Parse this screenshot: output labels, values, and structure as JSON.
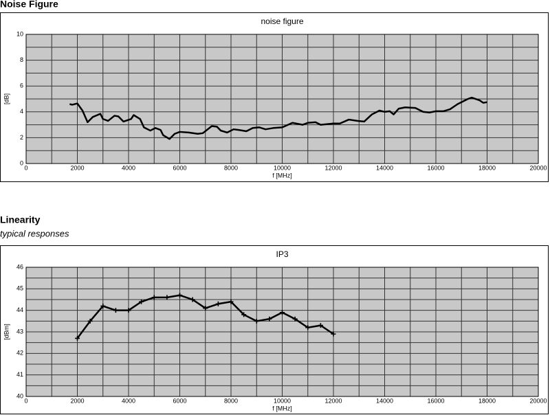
{
  "sections": [
    {
      "title": "Noise Figure"
    },
    {
      "title": "Linearity",
      "subtitle": "typical responses"
    }
  ],
  "chart_data": [
    {
      "type": "line",
      "title": "noise figure",
      "xlabel": "f [MHz]",
      "ylabel": "[dB]",
      "xlim": [
        0,
        20000
      ],
      "xticks": [
        0,
        2000,
        4000,
        6000,
        8000,
        10000,
        12000,
        14000,
        16000,
        18000,
        20000
      ],
      "xminor": [
        1000,
        3000,
        5000,
        7000,
        9000,
        11000,
        13000,
        15000,
        17000,
        19000
      ],
      "ylim": [
        0,
        10
      ],
      "yticks": [
        0,
        2,
        4,
        6,
        8,
        10
      ],
      "yminor": [
        1,
        3,
        5,
        7,
        9
      ],
      "grid": true,
      "markers": false,
      "color": "#000000",
      "x": [
        1700,
        1800,
        2000,
        2200,
        2400,
        2600,
        2900,
        3000,
        3200,
        3450,
        3600,
        3800,
        4100,
        4200,
        4450,
        4600,
        4850,
        5050,
        5250,
        5350,
        5600,
        5800,
        6000,
        6350,
        6700,
        6900,
        7250,
        7450,
        7600,
        7850,
        8100,
        8300,
        8600,
        8850,
        9100,
        9350,
        9650,
        10000,
        10400,
        10800,
        11000,
        11300,
        11500,
        12000,
        12250,
        12600,
        12950,
        13200,
        13500,
        13800,
        14000,
        14200,
        14350,
        14550,
        14800,
        15200,
        15500,
        15750,
        16000,
        16300,
        16550,
        16850,
        17250,
        17400,
        17700,
        17850,
        18000
      ],
      "values": [
        4.6,
        4.55,
        4.65,
        4.1,
        3.2,
        3.6,
        3.85,
        3.45,
        3.3,
        3.7,
        3.65,
        3.25,
        3.45,
        3.75,
        3.45,
        2.8,
        2.55,
        2.75,
        2.6,
        2.2,
        1.9,
        2.3,
        2.45,
        2.4,
        2.3,
        2.35,
        2.9,
        2.85,
        2.55,
        2.4,
        2.65,
        2.6,
        2.5,
        2.75,
        2.8,
        2.65,
        2.75,
        2.8,
        3.15,
        3.0,
        3.15,
        3.2,
        3.0,
        3.1,
        3.1,
        3.4,
        3.3,
        3.25,
        3.8,
        4.1,
        4.0,
        4.05,
        3.8,
        4.25,
        4.35,
        4.3,
        4.0,
        3.95,
        4.05,
        4.05,
        4.2,
        4.6,
        5.0,
        5.1,
        4.9,
        4.7,
        4.75
      ]
    },
    {
      "type": "line",
      "title": "IP3",
      "xlabel": "f [MHz]",
      "ylabel": "[dBm]",
      "xlim": [
        0,
        20000
      ],
      "xticks": [
        0,
        2000,
        4000,
        6000,
        8000,
        10000,
        12000,
        14000,
        16000,
        18000,
        20000
      ],
      "xminor": [
        1000,
        3000,
        5000,
        7000,
        9000,
        11000,
        13000,
        15000,
        17000,
        19000
      ],
      "ylim": [
        40,
        46
      ],
      "yticks": [
        40,
        41,
        42,
        43,
        44,
        45,
        46
      ],
      "yminor": [
        40.5,
        41.5,
        42.5,
        43.5,
        44.5,
        45.5
      ],
      "grid": true,
      "markers": true,
      "color": "#000000",
      "x": [
        2000,
        2500,
        3000,
        3500,
        4000,
        4500,
        5000,
        5500,
        6000,
        6500,
        7000,
        7500,
        8000,
        8500,
        9000,
        9500,
        10000,
        10500,
        11000,
        11500,
        12000
      ],
      "values": [
        42.7,
        43.5,
        44.2,
        44.0,
        44.0,
        44.4,
        44.6,
        44.6,
        44.7,
        44.5,
        44.1,
        44.3,
        44.4,
        43.8,
        43.5,
        43.6,
        43.9,
        43.6,
        43.2,
        43.3,
        42.9
      ]
    }
  ]
}
